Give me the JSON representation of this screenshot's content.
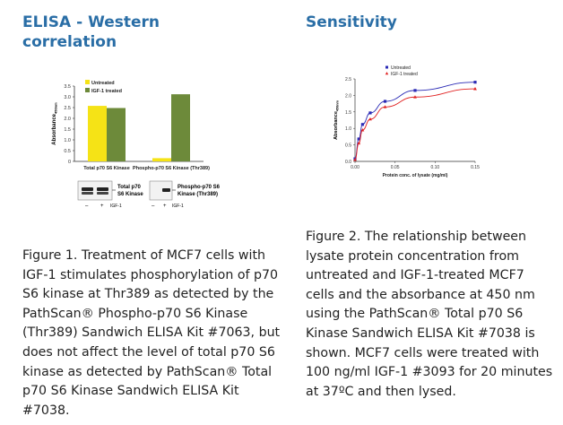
{
  "left_heading": "ELISA - Western correlation",
  "right_heading": "Sensitivity",
  "caption_left": "Figure 1. Treatment of MCF7 cells with IGF-1 stimulates phosphorylation of p70 S6 kinase at Thr389 as detected by the PathScan® Phospho-p70 S6 Kinase (Thr389) Sandwich ELISA Kit #7063, but does not affect the level of total p70 S6 kinase as detected by PathScan® Total p70 S6 Kinase Sandwich ELISA Kit #7038.",
  "caption_right": "Figure 2. The relationship between lysate protein concentration from untreated and IGF-1-treated MCF7 cells and the absorbance at 450 nm using the PathScan® Total p70 S6 Kinase Sandwich ELISA Kit #7038 is shown. MCF7 cells were treated with 100 ng/ml IGF-1 #3093 for 20 minutes at 37ºC and then lysed.",
  "blots": {
    "blot1_label_line1": "Total p70",
    "blot1_label_line2": "S6 Kinase",
    "blot2_label_line1": "Phospho-p70 S6",
    "blot2_label_line2": "Kinase (Thr389)",
    "lane_minus": "–",
    "lane_plus": "+",
    "treatment_label": "IGF-1"
  },
  "chart_data": [
    {
      "type": "bar",
      "categories": [
        "Total p70 S6 Kinase",
        "Phospho-p70 S6 Kinase (Thr389)"
      ],
      "series": [
        {
          "name": "Untreated",
          "values": [
            2.58,
            0.15
          ],
          "color": "#f5e316"
        },
        {
          "name": "IGF-1 treated",
          "values": [
            2.48,
            3.12
          ],
          "color": "#6d8a3a"
        }
      ],
      "ylabel": "Absorbance",
      "ylabel_sub": "450nm",
      "ylim": [
        0,
        3.5
      ],
      "yticks": [
        "0",
        "0.5",
        "1.0",
        "1.5",
        "2.0",
        "2.5",
        "3.0",
        "3.5"
      ],
      "legend": "top-left"
    },
    {
      "type": "line",
      "series": [
        {
          "name": "Untreated",
          "color": "#2a2ab5",
          "x": [
            0,
            0.0047,
            0.0094,
            0.019,
            0.0375,
            0.075,
            0.15
          ],
          "y": [
            0.08,
            0.68,
            1.12,
            1.47,
            1.82,
            2.15,
            2.4
          ]
        },
        {
          "name": "IGF-1 treated",
          "color": "#e02020",
          "x": [
            0,
            0.0047,
            0.0094,
            0.019,
            0.0375,
            0.075,
            0.15
          ],
          "y": [
            0.05,
            0.55,
            0.95,
            1.28,
            1.65,
            1.95,
            2.2
          ]
        }
      ],
      "xlabel": "Protein conc. of lysate (mg/ml)",
      "ylabel": "Absorbance",
      "ylabel_sub": "450nm",
      "xlim": [
        0,
        0.15
      ],
      "ylim": [
        0,
        2.5
      ],
      "xticks": [
        "0.00",
        "0.05",
        "0.10",
        "0.15"
      ],
      "yticks": [
        "0.0",
        "0.5",
        "1.0",
        "1.5",
        "2.0",
        "2.5"
      ],
      "legend": "top-left"
    }
  ]
}
